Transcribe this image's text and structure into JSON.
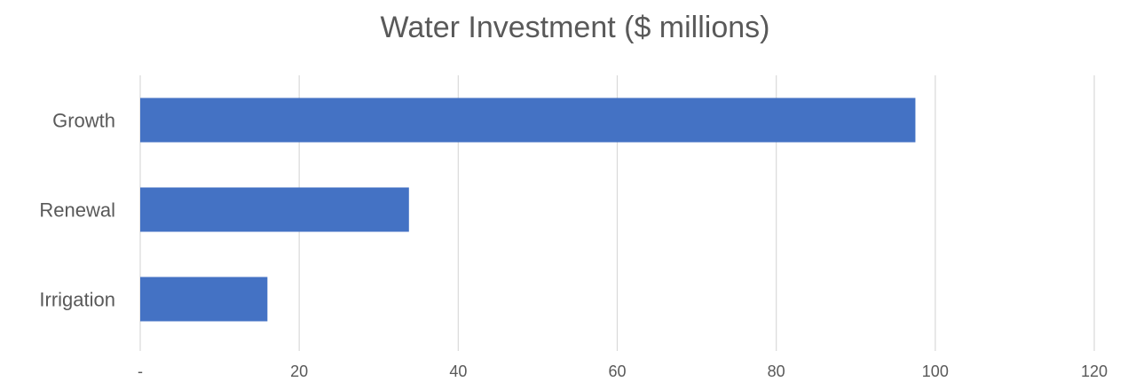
{
  "chart_data": {
    "type": "bar",
    "orientation": "horizontal",
    "title": "Water Investment ($ millions)",
    "xlabel": "",
    "ylabel": "",
    "categories": [
      "Growth",
      "Renewal",
      "Irrigation"
    ],
    "values": [
      97.5,
      33.8,
      16.0
    ],
    "xlim": [
      0,
      120
    ],
    "ticks": [
      0,
      20,
      40,
      60,
      80,
      100,
      120
    ],
    "tick_labels": [
      "-",
      "20",
      "40",
      "60",
      "80",
      "100",
      "120"
    ],
    "grid": true,
    "legend": "none",
    "bar_color": "#4472c4"
  }
}
